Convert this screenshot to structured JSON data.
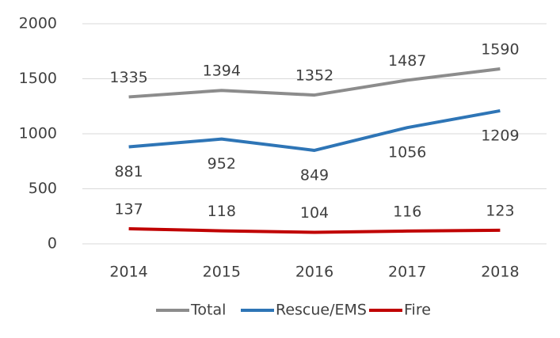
{
  "chart_data": {
    "type": "line",
    "categories": [
      "2014",
      "2015",
      "2016",
      "2017",
      "2018"
    ],
    "series": [
      {
        "name": "Total",
        "color": "#8c8c8c",
        "values": [
          1335,
          1394,
          1352,
          1487,
          1590
        ]
      },
      {
        "name": "Rescue/EMS",
        "color": "#2e75b6",
        "values": [
          881,
          952,
          849,
          1056,
          1209
        ]
      },
      {
        "name": "Fire",
        "color": "#c00000",
        "values": [
          137,
          118,
          104,
          116,
          123
        ]
      }
    ],
    "ylim": [
      0,
      2000
    ],
    "yticks": [
      0,
      500,
      1000,
      1500,
      2000
    ],
    "grid": true,
    "legend": "bottom"
  }
}
